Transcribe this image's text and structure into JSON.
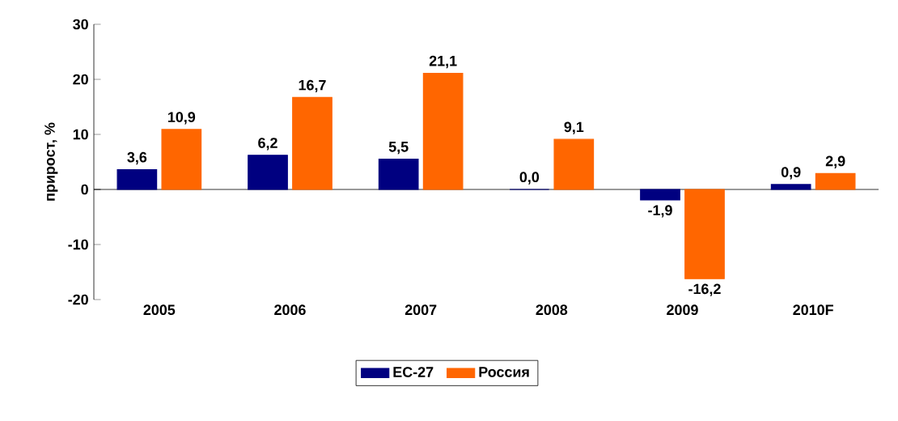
{
  "chart_data": {
    "type": "bar",
    "ylabel": "прирост, %",
    "categories": [
      "2005",
      "2006",
      "2007",
      "2008",
      "2009",
      "2010F"
    ],
    "series": [
      {
        "name": "ЕС-27",
        "color": "#000080",
        "values": [
          3.6,
          6.2,
          5.5,
          0.0,
          -1.9,
          0.9
        ],
        "value_labels": [
          "3,6",
          "6,2",
          "5,5",
          "0,0",
          "-1,9",
          "0,9"
        ]
      },
      {
        "name": "Россия",
        "color": "#ff6600",
        "values": [
          10.9,
          16.7,
          21.1,
          9.1,
          -16.2,
          2.9
        ],
        "value_labels": [
          "10,9",
          "16,7",
          "21,1",
          "9,1",
          "-16,2",
          "2,9"
        ]
      }
    ],
    "ylim": [
      -20,
      30
    ],
    "yticks": [
      -20,
      -10,
      0,
      10,
      20,
      30
    ],
    "legend": "bottom"
  }
}
